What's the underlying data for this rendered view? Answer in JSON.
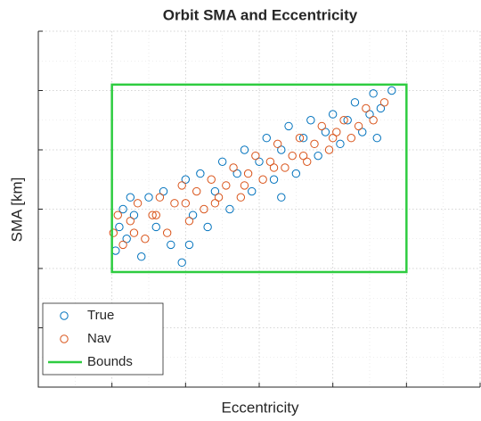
{
  "chart_data": {
    "type": "scatter",
    "title": "Orbit SMA and Eccentricity",
    "x_label": "Eccentricity",
    "y_label": "SMA [km]",
    "xlim": [
      0,
      6
    ],
    "ylim": [
      0,
      6
    ],
    "xticks": [
      0,
      1,
      2,
      3,
      4,
      5,
      6
    ],
    "yticks": [
      0,
      1,
      2,
      3,
      4,
      5,
      6
    ],
    "xminorticks": [
      0.5,
      1.5,
      2.5,
      3.5,
      4.5,
      5.5
    ],
    "yminorticks": [
      0.5,
      1.5,
      2.5,
      3.5,
      4.5,
      5.5
    ],
    "grid": true,
    "legend": "lower left",
    "series": [
      {
        "name": "True",
        "color": "#0072BD",
        "x": [
          1.05,
          1.1,
          1.15,
          1.2,
          1.3,
          1.4,
          1.5,
          1.6,
          1.7,
          1.8,
          1.95,
          2.0,
          2.1,
          2.2,
          2.3,
          2.4,
          2.5,
          2.6,
          2.7,
          2.8,
          2.9,
          3.0,
          3.1,
          3.2,
          3.3,
          3.4,
          3.5,
          3.6,
          3.7,
          3.8,
          3.9,
          4.0,
          4.1,
          4.2,
          4.3,
          4.4,
          4.5,
          4.55,
          4.65,
          4.8,
          4.6,
          1.25,
          2.05,
          3.3
        ],
        "values": [
          2.3,
          2.7,
          3.0,
          2.5,
          2.9,
          2.2,
          3.2,
          2.7,
          3.3,
          2.4,
          2.1,
          3.5,
          2.9,
          3.6,
          2.7,
          3.3,
          3.8,
          3.0,
          3.6,
          4.0,
          3.3,
          3.8,
          4.2,
          3.5,
          4.0,
          4.4,
          3.6,
          4.2,
          4.5,
          3.9,
          4.3,
          4.6,
          4.1,
          4.5,
          4.8,
          4.3,
          4.6,
          4.95,
          4.7,
          5.0,
          4.2,
          3.2,
          2.4,
          3.2
        ]
      },
      {
        "name": "Nav",
        "color": "#D95319",
        "x": [
          1.02,
          1.08,
          1.15,
          1.25,
          1.35,
          1.45,
          1.55,
          1.65,
          1.75,
          1.85,
          1.95,
          2.05,
          2.15,
          2.25,
          2.35,
          2.45,
          2.55,
          2.65,
          2.75,
          2.85,
          2.95,
          3.05,
          3.15,
          3.25,
          3.35,
          3.45,
          3.55,
          3.65,
          3.75,
          3.85,
          3.95,
          4.05,
          4.15,
          4.25,
          4.35,
          4.45,
          4.55,
          4.7,
          1.3,
          1.6,
          2.0,
          2.4,
          2.8,
          3.2,
          3.6,
          4.0
        ],
        "values": [
          2.6,
          2.9,
          2.4,
          2.8,
          3.1,
          2.5,
          2.9,
          3.2,
          2.6,
          3.1,
          3.4,
          2.8,
          3.3,
          3.0,
          3.5,
          3.2,
          3.4,
          3.7,
          3.2,
          3.6,
          3.9,
          3.5,
          3.8,
          4.1,
          3.7,
          3.9,
          4.2,
          3.8,
          4.1,
          4.4,
          4.0,
          4.3,
          4.5,
          4.2,
          4.4,
          4.7,
          4.5,
          4.8,
          2.6,
          2.9,
          3.1,
          3.1,
          3.4,
          3.7,
          3.9,
          4.2
        ]
      }
    ],
    "bounds": {
      "name": "Bounds",
      "color": "#2ecc40",
      "x": [
        1,
        5
      ],
      "y": [
        1.94,
        5.1
      ]
    }
  }
}
